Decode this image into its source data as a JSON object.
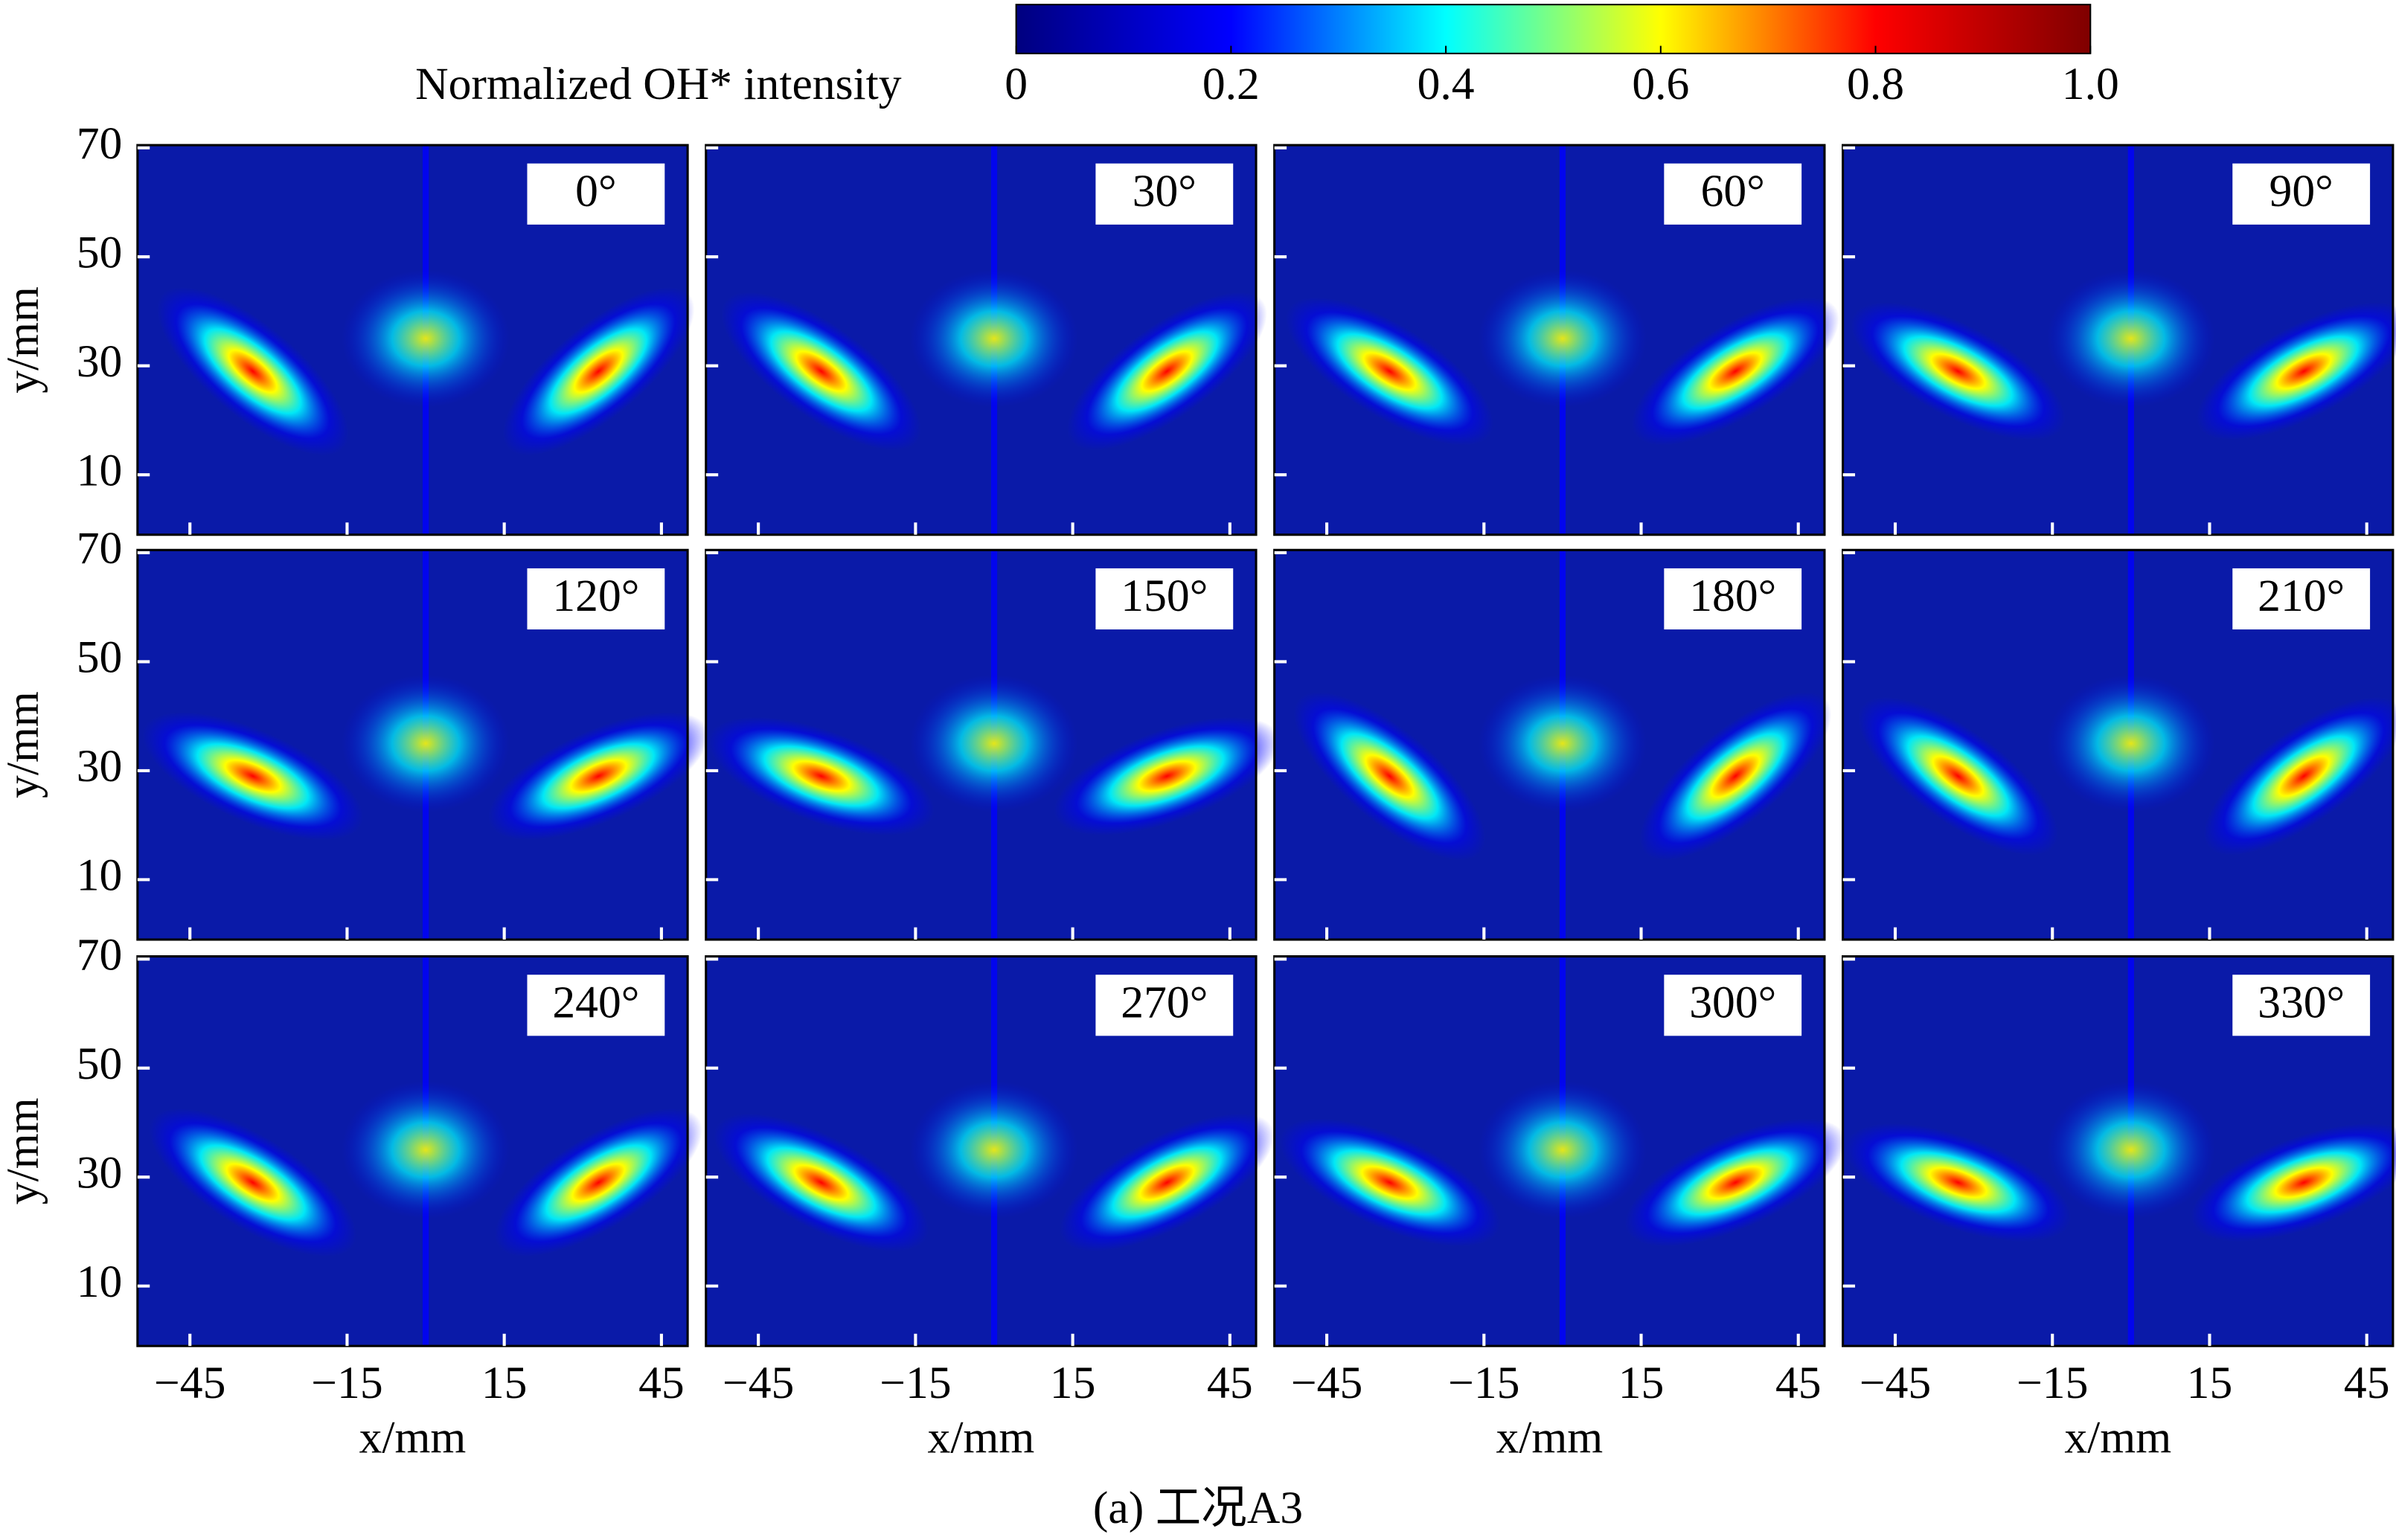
{
  "chart_data": {
    "type": "heatmap",
    "colorbar": {
      "label": "Normalized OH* intensity",
      "clim": [
        0,
        1
      ],
      "ticks": [
        0,
        0.2,
        0.4,
        0.6,
        0.8,
        {
          "value": 1,
          "label": "1.0"
        }
      ],
      "colormap": [
        "#00007f",
        "#0000ff",
        "#00ffff",
        "#ffff00",
        "#ff0000",
        "#7f0000"
      ]
    },
    "panels": [
      "0°",
      "30°",
      "60°",
      "90°",
      "120°",
      "150°",
      "180°",
      "210°",
      "240°",
      "270°",
      "300°",
      "330°"
    ],
    "xlabel": "x/mm",
    "ylabel": "y/mm",
    "xlim": [
      -55,
      50
    ],
    "ylim": [
      -1,
      70.5
    ],
    "xticks": [
      {
        "value": -45,
        "label": "−45"
      },
      {
        "value": -15,
        "label": "−15"
      },
      15,
      45
    ],
    "yticks": [
      10,
      30,
      50,
      70
    ],
    "caption": "(a) 工况A3"
  }
}
